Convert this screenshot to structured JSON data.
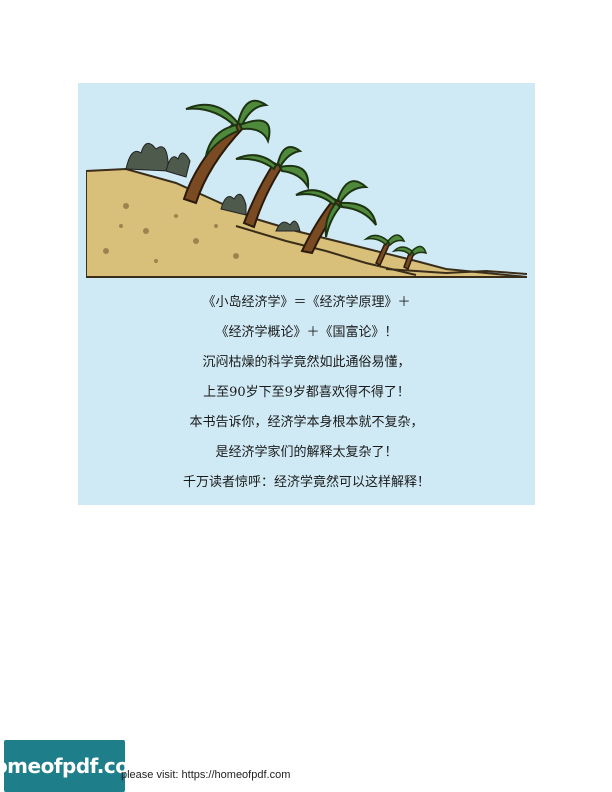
{
  "panel": {
    "background": "#cfeaf4",
    "illustration": "palm-island-icon",
    "lines": [
      "《小岛经济学》＝《经济学原理》＋",
      "《经济学概论》＋《国富论》！",
      "沉闷枯燥的科学竟然如此通俗易懂，",
      "上至90岁下至9岁都喜欢得不得了！",
      "本书告诉你，经济学本身根本就不复杂，",
      "是经济学家们的解释太复杂了！",
      "千万读者惊呼：经济学竟然可以这样解释！"
    ]
  },
  "footer": {
    "logo_text": "homeofpdf.com",
    "logo_color": "#1e7f8a",
    "link_text": "please visit: https://homeofpdf.com"
  }
}
